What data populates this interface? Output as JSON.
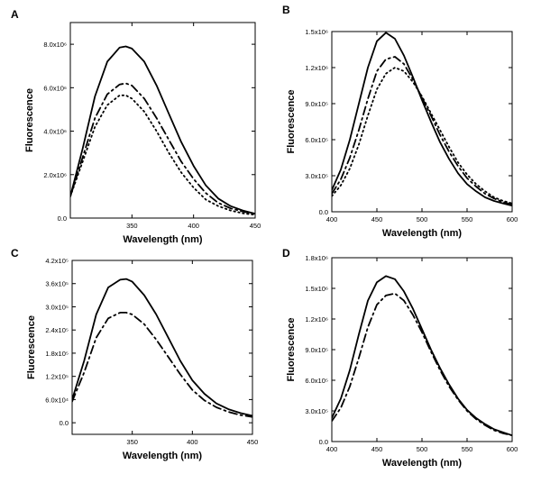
{
  "chart_data": [
    {
      "panel": "A",
      "type": "line",
      "xlabel": "Wavelength (nm)",
      "ylabel": "Fluorescence",
      "xlim": [
        300,
        450
      ],
      "ylim": [
        0,
        9000000
      ],
      "xticks": [
        350,
        400,
        450
      ],
      "xtick_labels": [
        "350",
        "400",
        "450"
      ],
      "yticks": [
        0,
        2000000,
        4000000,
        6000000,
        8000000
      ],
      "ytick_labels": [
        "0.0",
        "2.0x10⁶",
        "4.0x10⁶",
        "6.0x10⁶",
        "8.0x10⁶"
      ],
      "series": [
        {
          "style": "solid",
          "x": [
            300,
            310,
            320,
            330,
            340,
            345,
            350,
            360,
            370,
            380,
            390,
            400,
            410,
            420,
            430,
            440,
            450
          ],
          "y": [
            1000000,
            3200000,
            5600000,
            7200000,
            7850000,
            7900000,
            7800000,
            7200000,
            6100000,
            4800000,
            3500000,
            2400000,
            1500000,
            900000,
            550000,
            350000,
            200000
          ]
        },
        {
          "style": "dashed",
          "x": [
            300,
            310,
            320,
            330,
            340,
            345,
            350,
            360,
            370,
            380,
            390,
            400,
            410,
            420,
            430,
            440,
            450
          ],
          "y": [
            1000000,
            2800000,
            4600000,
            5700000,
            6150000,
            6200000,
            6100000,
            5500000,
            4600000,
            3600000,
            2600000,
            1800000,
            1150000,
            700000,
            450000,
            300000,
            200000
          ]
        },
        {
          "style": "dotted",
          "x": [
            300,
            310,
            320,
            330,
            340,
            345,
            350,
            360,
            370,
            380,
            390,
            400,
            410,
            420,
            430,
            440,
            450
          ],
          "y": [
            1000000,
            2600000,
            4200000,
            5200000,
            5650000,
            5650000,
            5500000,
            4900000,
            4000000,
            3000000,
            2100000,
            1400000,
            850000,
            550000,
            350000,
            220000,
            150000
          ]
        }
      ]
    },
    {
      "panel": "B",
      "type": "line",
      "xlabel": "Wavelength (nm)",
      "ylabel": "Fluorescence",
      "xlim": [
        400,
        600
      ],
      "ylim": [
        0,
        1500000
      ],
      "xticks": [
        400,
        450,
        500,
        550,
        600
      ],
      "xtick_labels": [
        "400",
        "450",
        "500",
        "550",
        "600"
      ],
      "yticks": [
        0,
        300000,
        600000,
        900000,
        1200000,
        1500000
      ],
      "ytick_labels": [
        "0.0",
        "3.0x10⁵",
        "6.0x10⁵",
        "9.0x10⁵",
        "1.2x10⁶",
        "1.5x10⁶"
      ],
      "series": [
        {
          "style": "solid",
          "x": [
            400,
            410,
            420,
            430,
            440,
            450,
            460,
            470,
            480,
            490,
            500,
            510,
            520,
            530,
            540,
            550,
            560,
            570,
            580,
            590,
            600
          ],
          "y": [
            180000,
            350000,
            600000,
            900000,
            1200000,
            1420000,
            1490000,
            1440000,
            1300000,
            1120000,
            930000,
            750000,
            580000,
            440000,
            320000,
            230000,
            170000,
            120000,
            90000,
            70000,
            50000
          ]
        },
        {
          "style": "dashed",
          "x": [
            400,
            410,
            420,
            430,
            440,
            450,
            460,
            470,
            480,
            490,
            500,
            510,
            520,
            530,
            540,
            550,
            560,
            570,
            580,
            590,
            600
          ],
          "y": [
            150000,
            270000,
            450000,
            680000,
            940000,
            1170000,
            1270000,
            1290000,
            1230000,
            1100000,
            950000,
            800000,
            640000,
            500000,
            380000,
            280000,
            210000,
            150000,
            110000,
            80000,
            60000
          ]
        },
        {
          "style": "dotted",
          "x": [
            400,
            410,
            420,
            430,
            440,
            450,
            460,
            470,
            480,
            490,
            500,
            510,
            520,
            530,
            540,
            550,
            560,
            570,
            580,
            590,
            600
          ],
          "y": [
            130000,
            220000,
            360000,
            560000,
            800000,
            1020000,
            1150000,
            1200000,
            1170000,
            1080000,
            960000,
            820000,
            680000,
            540000,
            410000,
            310000,
            230000,
            170000,
            120000,
            90000,
            70000
          ]
        }
      ]
    },
    {
      "panel": "C",
      "type": "line",
      "xlabel": "Wavelength (nm)",
      "ylabel": "Fluorescence",
      "xlim": [
        300,
        450
      ],
      "ylim": [
        -30000,
        420000
      ],
      "xticks": [
        350,
        400,
        450
      ],
      "xtick_labels": [
        "350",
        "400",
        "450"
      ],
      "yticks": [
        0,
        60000,
        120000,
        180000,
        240000,
        300000,
        360000,
        420000
      ],
      "ytick_labels": [
        "0.0",
        "6.0x10⁴",
        "1.2x10⁵",
        "1.8x10⁵",
        "2.4x10⁵",
        "3.0x10⁵",
        "3.6x10⁵",
        "4.2x10⁵"
      ],
      "series": [
        {
          "style": "solid",
          "x": [
            300,
            310,
            320,
            330,
            340,
            345,
            350,
            360,
            370,
            380,
            390,
            400,
            410,
            420,
            430,
            440,
            450
          ],
          "y": [
            60000,
            160000,
            280000,
            350000,
            370000,
            372000,
            365000,
            330000,
            280000,
            220000,
            160000,
            110000,
            75000,
            50000,
            35000,
            25000,
            18000
          ]
        },
        {
          "style": "dashed",
          "x": [
            300,
            310,
            320,
            330,
            340,
            345,
            350,
            360,
            370,
            380,
            390,
            400,
            410,
            420,
            430,
            440,
            450
          ],
          "y": [
            55000,
            130000,
            220000,
            270000,
            285000,
            285000,
            280000,
            255000,
            215000,
            170000,
            125000,
            85000,
            58000,
            40000,
            28000,
            20000,
            15000
          ]
        }
      ]
    },
    {
      "panel": "D",
      "type": "line",
      "xlabel": "Wavelength (nm)",
      "ylabel": "Fluorescence",
      "xlim": [
        400,
        600
      ],
      "ylim": [
        0,
        1800000
      ],
      "xticks": [
        400,
        450,
        500,
        550,
        600
      ],
      "xtick_labels": [
        "400",
        "450",
        "500",
        "550",
        "600"
      ],
      "yticks": [
        0,
        300000,
        600000,
        900000,
        1200000,
        1500000,
        1800000
      ],
      "ytick_labels": [
        "0.0",
        "3.0x10⁵",
        "6.0x10⁵",
        "9.0x10⁵",
        "1.2x10⁶",
        "1.5x10⁶",
        "1.8x10⁶"
      ],
      "series": [
        {
          "style": "solid",
          "x": [
            400,
            410,
            420,
            430,
            440,
            450,
            460,
            470,
            480,
            490,
            500,
            510,
            520,
            530,
            540,
            550,
            560,
            570,
            580,
            590,
            600
          ],
          "y": [
            230000,
            420000,
            700000,
            1050000,
            1380000,
            1560000,
            1620000,
            1590000,
            1470000,
            1300000,
            1100000,
            900000,
            720000,
            560000,
            420000,
            310000,
            230000,
            170000,
            120000,
            90000,
            60000
          ]
        },
        {
          "style": "dashed",
          "x": [
            400,
            410,
            420,
            430,
            440,
            450,
            460,
            470,
            480,
            490,
            500,
            510,
            520,
            530,
            540,
            550,
            560,
            570,
            580,
            590,
            600
          ],
          "y": [
            200000,
            330000,
            540000,
            820000,
            1120000,
            1340000,
            1430000,
            1450000,
            1380000,
            1240000,
            1070000,
            880000,
            700000,
            540000,
            410000,
            300000,
            220000,
            160000,
            110000,
            80000,
            60000
          ]
        }
      ]
    }
  ]
}
